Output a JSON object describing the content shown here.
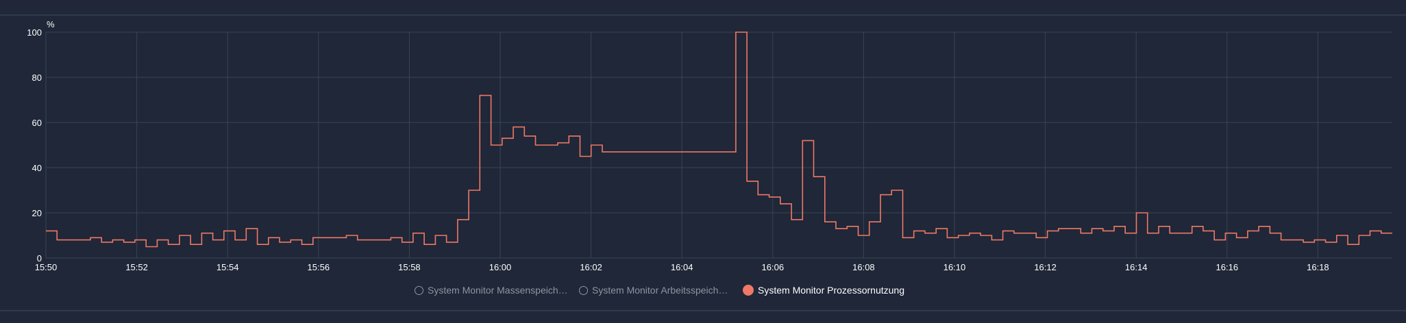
{
  "chart_data": {
    "type": "line",
    "step": true,
    "y_unit_label": "%",
    "ylim": [
      0,
      100
    ],
    "yticks": [
      "0",
      "20",
      "40",
      "60",
      "80",
      "100"
    ],
    "xticks": [
      "15:50",
      "15:52",
      "15:54",
      "15:56",
      "15:58",
      "16:00",
      "16:02",
      "16:04",
      "16:06",
      "16:08",
      "16:10",
      "16:12",
      "16:14",
      "16:16",
      "16:18"
    ],
    "grid": true,
    "legend_position": "bottom",
    "series": [
      {
        "name": "System Monitor Prozessornutzung",
        "color": "#f07866",
        "values": [
          12,
          8,
          8,
          8,
          9,
          7,
          8,
          7,
          8,
          5,
          8,
          6,
          10,
          6,
          11,
          8,
          12,
          8,
          13,
          6,
          9,
          7,
          8,
          6,
          9,
          9,
          9,
          10,
          8,
          8,
          8,
          9,
          7,
          11,
          6,
          10,
          7,
          17,
          30,
          72,
          50,
          53,
          58,
          54,
          50,
          50,
          51,
          54,
          45,
          50,
          47,
          47,
          47,
          47,
          47,
          47,
          47,
          47,
          47,
          47,
          47,
          47,
          100,
          34,
          28,
          27,
          24,
          17,
          52,
          36,
          16,
          13,
          14,
          10,
          16,
          28,
          30,
          9,
          12,
          11,
          13,
          9,
          10,
          11,
          10,
          8,
          12,
          11,
          11,
          9,
          12,
          13,
          13,
          11,
          13,
          12,
          14,
          11,
          20,
          11,
          14,
          11,
          11,
          14,
          12,
          8,
          11,
          9,
          12,
          14,
          11,
          8,
          8,
          7,
          8,
          7,
          10,
          6,
          10,
          12,
          11
        ]
      }
    ]
  },
  "legend": {
    "items": [
      {
        "label": "System Monitor Massenspeicher-A...",
        "active": false
      },
      {
        "label": "System Monitor Arbeitsspeicherau...",
        "active": false
      },
      {
        "label": "System Monitor Prozessornutzung",
        "active": true
      }
    ]
  },
  "colors": {
    "background": "#1f2738",
    "grid": "#3a4455",
    "line": "#f07866",
    "inactive_text": "#8e96a3"
  }
}
